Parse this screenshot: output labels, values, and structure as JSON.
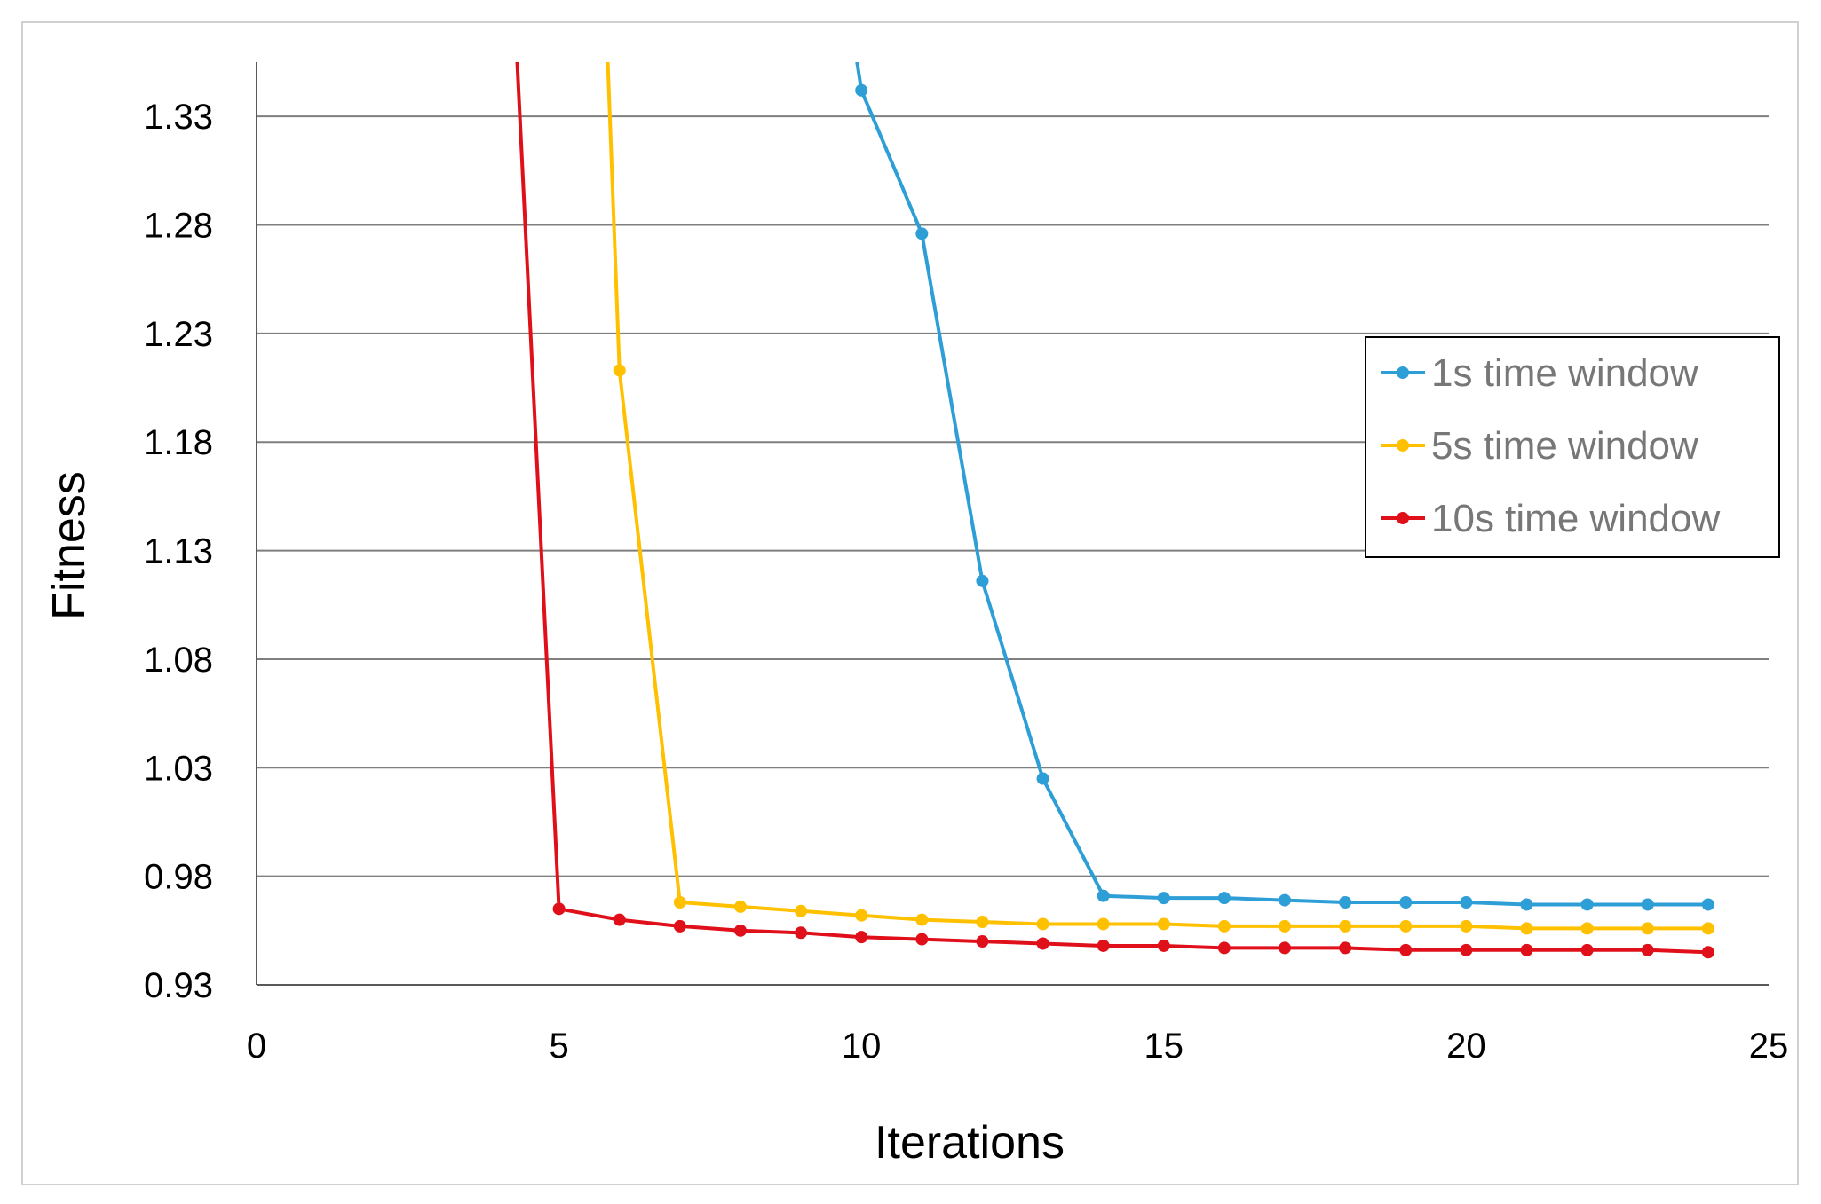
{
  "chart_data": {
    "type": "line",
    "title": "",
    "xlabel": "Iterations",
    "ylabel": "Fitness",
    "xlim": [
      0,
      25
    ],
    "ylim": [
      0.93,
      1.355
    ],
    "x_ticks": [
      "0",
      "5",
      "10",
      "15",
      "20",
      "25"
    ],
    "y_ticks": [
      "0.93",
      "0.98",
      "1.03",
      "1.08",
      "1.13",
      "1.18",
      "1.23",
      "1.28",
      "1.33"
    ],
    "grid": true,
    "legend_position": "right",
    "series": [
      {
        "name": "1s time window",
        "color": "#2E9ED6",
        "x": [
          9.9,
          10,
          11,
          12,
          13,
          14,
          15,
          16,
          17,
          18,
          19,
          20,
          21,
          22,
          23,
          24
        ],
        "y": [
          1.36,
          1.342,
          1.276,
          1.116,
          1.025,
          0.971,
          0.97,
          0.97,
          0.969,
          0.968,
          0.968,
          0.968,
          0.967,
          0.967,
          0.967,
          0.967
        ]
      },
      {
        "name": "5s time window",
        "color": "#FFC000",
        "x": [
          5.8,
          6,
          7,
          8,
          9,
          10,
          11,
          12,
          13,
          14,
          15,
          16,
          17,
          18,
          19,
          20,
          21,
          22,
          23,
          24
        ],
        "y": [
          1.36,
          1.213,
          0.968,
          0.966,
          0.964,
          0.962,
          0.96,
          0.959,
          0.958,
          0.958,
          0.958,
          0.957,
          0.957,
          0.957,
          0.957,
          0.957,
          0.956,
          0.956,
          0.956,
          0.956
        ]
      },
      {
        "name": "10s time window",
        "color": "#E0101A",
        "x": [
          4.3,
          5,
          6,
          7,
          8,
          9,
          10,
          11,
          12,
          13,
          14,
          15,
          16,
          17,
          18,
          19,
          20,
          21,
          22,
          23,
          24
        ],
        "y": [
          1.36,
          0.965,
          0.96,
          0.957,
          0.955,
          0.954,
          0.952,
          0.951,
          0.95,
          0.949,
          0.948,
          0.948,
          0.947,
          0.947,
          0.947,
          0.946,
          0.946,
          0.946,
          0.946,
          0.946,
          0.945
        ]
      }
    ]
  }
}
